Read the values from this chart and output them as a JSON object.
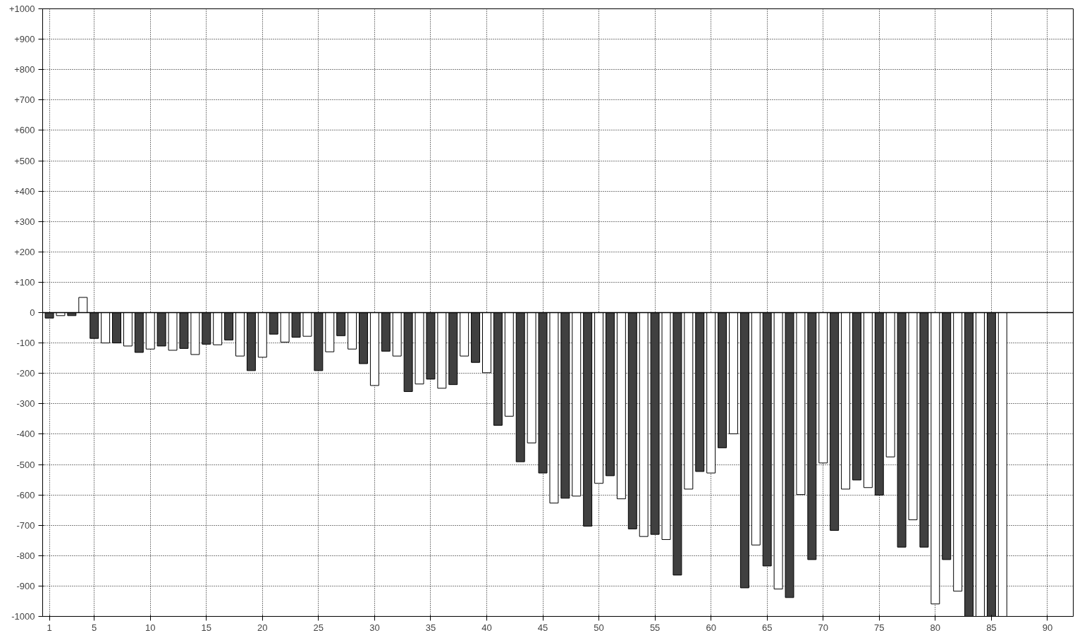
{
  "chart_data": {
    "type": "bar",
    "x": [
      1,
      2,
      3,
      4,
      5,
      6,
      7,
      8,
      9,
      10,
      11,
      12,
      13,
      14,
      15,
      16,
      17,
      18,
      19,
      20,
      21,
      22,
      23,
      24,
      25,
      26,
      27,
      28,
      29,
      30,
      31,
      32,
      33,
      34,
      35,
      36,
      37,
      38,
      39,
      40,
      41,
      42,
      43,
      44,
      45,
      46,
      47,
      48,
      49,
      50,
      51,
      52,
      53,
      54,
      55,
      56,
      57,
      58,
      59,
      60,
      61,
      62,
      63,
      64,
      65,
      66,
      67,
      68,
      69,
      70,
      71,
      72,
      73,
      74,
      75,
      76,
      77,
      78,
      79,
      80,
      81,
      82,
      83,
      84,
      85,
      86
    ],
    "values": [
      -18,
      -10,
      -10,
      50,
      -85,
      -100,
      -100,
      -110,
      -131,
      -120,
      -110,
      -124,
      -118,
      -138,
      -104,
      -106,
      -90,
      -143,
      -191,
      -147,
      -71,
      -97,
      -81,
      -78,
      -191,
      -129,
      -76,
      -120,
      -168,
      -240,
      -127,
      -143,
      -260,
      -235,
      -219,
      -249,
      -237,
      -143,
      -164,
      -198,
      -371,
      -341,
      -491,
      -429,
      -528,
      -627,
      -611,
      -604,
      -703,
      -562,
      -537,
      -613,
      -712,
      -737,
      -730,
      -747,
      -864,
      -581,
      -523,
      -528,
      -445,
      -399,
      -906,
      -765,
      -834,
      -910,
      -938,
      -599,
      -813,
      -495,
      -717,
      -581,
      -551,
      -576,
      -601,
      -475,
      -772,
      -682,
      -772,
      -959,
      -813,
      -917,
      -1000,
      -1000,
      -1000,
      -1000
    ],
    "colors": [
      "#404040",
      "#ffffff",
      "#404040",
      "#ffffff",
      "#404040",
      "#ffffff",
      "#404040",
      "#ffffff",
      "#404040",
      "#ffffff",
      "#404040",
      "#ffffff",
      "#404040",
      "#ffffff",
      "#404040",
      "#ffffff",
      "#404040",
      "#ffffff",
      "#404040",
      "#ffffff",
      "#404040",
      "#ffffff",
      "#404040",
      "#ffffff",
      "#404040",
      "#ffffff",
      "#404040",
      "#ffffff",
      "#404040",
      "#ffffff",
      "#404040",
      "#ffffff",
      "#404040",
      "#ffffff",
      "#404040",
      "#ffffff",
      "#404040",
      "#ffffff",
      "#404040",
      "#ffffff",
      "#404040",
      "#ffffff",
      "#404040",
      "#ffffff",
      "#404040",
      "#ffffff",
      "#404040",
      "#ffffff",
      "#404040",
      "#ffffff",
      "#404040",
      "#ffffff",
      "#404040",
      "#ffffff",
      "#404040",
      "#ffffff",
      "#404040",
      "#ffffff",
      "#404040",
      "#ffffff",
      "#404040",
      "#ffffff",
      "#404040",
      "#ffffff",
      "#404040",
      "#ffffff",
      "#404040",
      "#ffffff",
      "#404040",
      "#ffffff",
      "#404040",
      "#ffffff",
      "#404040",
      "#ffffff",
      "#404040",
      "#ffffff",
      "#404040",
      "#ffffff",
      "#404040",
      "#ffffff",
      "#404040",
      "#ffffff",
      "#404040",
      "#ffffff",
      "#404040",
      "#ffffff"
    ],
    "xlim": [
      0.4,
      92.3
    ],
    "xticks": [
      1,
      5,
      10,
      15,
      20,
      25,
      30,
      35,
      40,
      45,
      50,
      55,
      60,
      65,
      70,
      75,
      80,
      85,
      90
    ],
    "ylim": [
      -1000,
      1000
    ],
    "yticks": [
      {
        "value": -1000,
        "label": "-1000"
      },
      {
        "value": -900,
        "label": "-900"
      },
      {
        "value": -800,
        "label": "-800"
      },
      {
        "value": -700,
        "label": "-700"
      },
      {
        "value": -600,
        "label": "-600"
      },
      {
        "value": -500,
        "label": "-500"
      },
      {
        "value": -400,
        "label": "-400"
      },
      {
        "value": -300,
        "label": "-300"
      },
      {
        "value": -200,
        "label": "-200"
      },
      {
        "value": -100,
        "label": "-100"
      },
      0,
      {
        "value": 100,
        "label": "+100"
      },
      {
        "value": 200,
        "label": "+200"
      },
      {
        "value": 300,
        "label": "+300"
      },
      {
        "value": 400,
        "label": "+400"
      },
      {
        "value": 500,
        "label": "+500"
      },
      {
        "value": 600,
        "label": "+600"
      },
      {
        "value": 700,
        "label": "+700"
      },
      {
        "value": 800,
        "label": "+800"
      },
      {
        "value": 900,
        "label": "+900"
      },
      {
        "value": 1000,
        "label": "+1000"
      }
    ],
    "ref_lines": [
      {
        "axis": "y",
        "value": 0,
        "color": "#000000",
        "line_style": "solid"
      }
    ],
    "grid": true
  }
}
